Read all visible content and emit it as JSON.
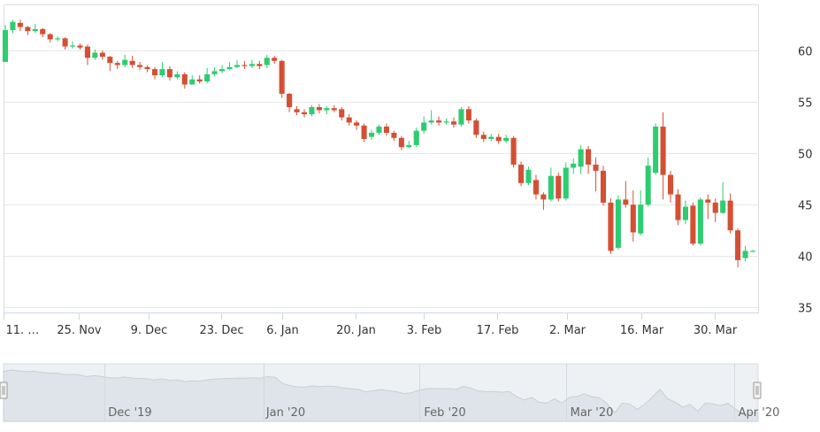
{
  "chart_data": {
    "type": "candlestick",
    "x_tick_labels": [
      "11. …",
      "25. Nov",
      "9. Dec",
      "23. Dec",
      "6. Jan",
      "20. Jan",
      "3. Feb",
      "17. Feb",
      "2. Mar",
      "16. Mar",
      "30. Mar"
    ],
    "y_tick_labels": [
      "35",
      "40",
      "45",
      "50",
      "55",
      "60"
    ],
    "y_ticks": [
      35,
      40,
      45,
      50,
      55,
      60
    ],
    "ylim": [
      34.5,
      64.5
    ],
    "y_axis_position": "right",
    "grid": "horizontal",
    "up_color": "#2ecc71",
    "down_color": "#d44f33",
    "navigator_labels": [
      "Dec '19",
      "Jan '20",
      "Feb '20",
      "Mar '20",
      "Apr '20"
    ],
    "candles": [
      [
        58.9,
        62.0,
        62.5,
        58.9
      ],
      [
        62.0,
        62.8,
        63.0,
        61.7
      ],
      [
        62.7,
        62.3,
        63.0,
        61.9
      ],
      [
        62.3,
        61.9,
        62.4,
        61.5
      ],
      [
        61.9,
        62.1,
        62.6,
        61.7
      ],
      [
        62.1,
        61.6,
        62.2,
        61.3
      ],
      [
        61.6,
        61.1,
        61.7,
        60.8
      ],
      [
        61.1,
        61.2,
        61.4,
        60.9
      ],
      [
        61.2,
        60.4,
        61.3,
        60.1
      ],
      [
        60.4,
        60.5,
        60.9,
        60.2
      ],
      [
        60.5,
        60.3,
        60.7,
        60.1
      ],
      [
        60.4,
        59.3,
        60.6,
        58.6
      ],
      [
        59.3,
        59.8,
        60.1,
        59.1
      ],
      [
        59.8,
        59.4,
        60.0,
        59.1
      ],
      [
        59.4,
        58.8,
        59.5,
        58.0
      ],
      [
        58.8,
        58.6,
        59.0,
        58.2
      ],
      [
        58.6,
        59.1,
        59.6,
        58.4
      ],
      [
        59.0,
        58.6,
        59.5,
        58.3
      ],
      [
        58.6,
        58.4,
        58.9,
        58.1
      ],
      [
        58.4,
        58.2,
        58.6,
        57.9
      ],
      [
        58.2,
        57.6,
        58.4,
        57.2
      ],
      [
        57.6,
        58.2,
        58.9,
        57.4
      ],
      [
        58.2,
        57.4,
        58.5,
        57.1
      ],
      [
        57.4,
        57.7,
        58.0,
        57.2
      ],
      [
        57.7,
        56.7,
        57.9,
        56.3
      ],
      [
        56.7,
        57.2,
        57.6,
        56.7
      ],
      [
        57.2,
        57.0,
        57.6,
        56.8
      ],
      [
        57.0,
        57.7,
        58.3,
        56.8
      ],
      [
        57.7,
        58.0,
        58.4,
        57.5
      ],
      [
        58.0,
        58.2,
        58.6,
        57.8
      ],
      [
        58.2,
        58.4,
        58.9,
        58.1
      ],
      [
        58.4,
        58.6,
        59.1,
        58.3
      ],
      [
        58.6,
        58.5,
        59.0,
        58.2
      ],
      [
        58.5,
        58.7,
        59.1,
        58.3
      ],
      [
        58.7,
        58.5,
        59.0,
        58.2
      ],
      [
        58.6,
        59.3,
        59.6,
        58.3
      ],
      [
        59.3,
        59.0,
        59.5,
        58.7
      ],
      [
        59.0,
        55.8,
        59.1,
        55.4
      ],
      [
        55.8,
        54.5,
        55.9,
        54.0
      ],
      [
        54.3,
        54.0,
        54.6,
        53.7
      ],
      [
        54.0,
        53.8,
        54.3,
        53.5
      ],
      [
        53.8,
        54.5,
        54.7,
        53.6
      ],
      [
        54.5,
        54.2,
        54.8,
        53.9
      ],
      [
        54.2,
        54.4,
        54.6,
        53.8
      ],
      [
        54.4,
        54.2,
        54.7,
        54.0
      ],
      [
        54.3,
        53.5,
        54.5,
        53.2
      ],
      [
        53.5,
        53.0,
        53.8,
        52.7
      ],
      [
        53.0,
        52.7,
        53.2,
        52.3
      ],
      [
        52.7,
        51.4,
        52.9,
        51.1
      ],
      [
        51.6,
        52.0,
        52.3,
        51.3
      ],
      [
        52.0,
        52.6,
        52.8,
        51.8
      ],
      [
        52.6,
        52.0,
        52.9,
        51.7
      ],
      [
        52.0,
        51.5,
        52.2,
        51.2
      ],
      [
        51.5,
        50.6,
        51.7,
        50.3
      ],
      [
        50.6,
        50.8,
        51.2,
        50.5
      ],
      [
        50.8,
        52.2,
        52.5,
        50.6
      ],
      [
        52.2,
        53.0,
        53.6,
        51.9
      ],
      [
        53.0,
        53.2,
        54.2,
        52.8
      ],
      [
        53.2,
        53.0,
        53.6,
        52.7
      ],
      [
        53.0,
        53.1,
        53.4,
        52.8
      ],
      [
        53.1,
        52.8,
        53.5,
        52.5
      ],
      [
        52.8,
        54.3,
        54.5,
        52.6
      ],
      [
        54.3,
        53.2,
        54.6,
        52.9
      ],
      [
        53.2,
        51.8,
        53.4,
        51.5
      ],
      [
        51.8,
        51.4,
        52.1,
        51.1
      ],
      [
        51.4,
        51.6,
        51.9,
        51.2
      ],
      [
        51.6,
        51.2,
        51.9,
        50.9
      ],
      [
        51.2,
        51.5,
        51.8,
        51.0
      ],
      [
        51.5,
        48.9,
        51.7,
        48.6
      ],
      [
        48.9,
        47.1,
        49.2,
        46.8
      ],
      [
        47.1,
        48.4,
        48.7,
        46.9
      ],
      [
        47.4,
        46.0,
        47.9,
        45.5
      ],
      [
        46.0,
        45.5,
        46.2,
        44.5
      ],
      [
        45.5,
        47.8,
        48.6,
        45.3
      ],
      [
        47.8,
        45.6,
        48.1,
        45.3
      ],
      [
        45.6,
        48.6,
        49.1,
        45.4
      ],
      [
        48.6,
        49.0,
        49.5,
        48.0
      ],
      [
        48.7,
        50.4,
        50.8,
        48.0
      ],
      [
        50.4,
        48.9,
        50.7,
        48.0
      ],
      [
        48.9,
        48.3,
        49.6,
        46.3
      ],
      [
        48.3,
        45.2,
        48.8,
        44.9
      ],
      [
        45.2,
        40.5,
        45.6,
        40.2
      ],
      [
        40.8,
        45.5,
        45.9,
        40.6
      ],
      [
        45.5,
        45.0,
        47.3,
        44.7
      ],
      [
        45.0,
        42.3,
        46.4,
        41.4
      ],
      [
        42.2,
        45.0,
        46.4,
        42.0
      ],
      [
        45.0,
        48.8,
        49.6,
        44.8
      ],
      [
        48.1,
        52.6,
        52.9,
        47.9
      ],
      [
        52.6,
        47.9,
        54.0,
        45.5
      ],
      [
        47.9,
        46.0,
        48.3,
        45.2
      ],
      [
        46.0,
        43.5,
        46.5,
        43.0
      ],
      [
        43.5,
        44.8,
        45.4,
        43.1
      ],
      [
        44.9,
        41.2,
        45.2,
        41.0
      ],
      [
        41.2,
        45.5,
        45.7,
        41.0
      ],
      [
        45.5,
        45.2,
        46.0,
        43.6
      ],
      [
        45.2,
        44.2,
        45.6,
        43.3
      ],
      [
        44.2,
        45.4,
        47.2,
        44.1
      ],
      [
        45.4,
        42.5,
        46.1,
        42.2
      ],
      [
        42.5,
        39.6,
        42.7,
        38.9
      ],
      [
        39.8,
        40.5,
        41.0,
        39.5
      ],
      [
        40.5,
        40.5,
        40.6,
        40.4
      ]
    ]
  }
}
